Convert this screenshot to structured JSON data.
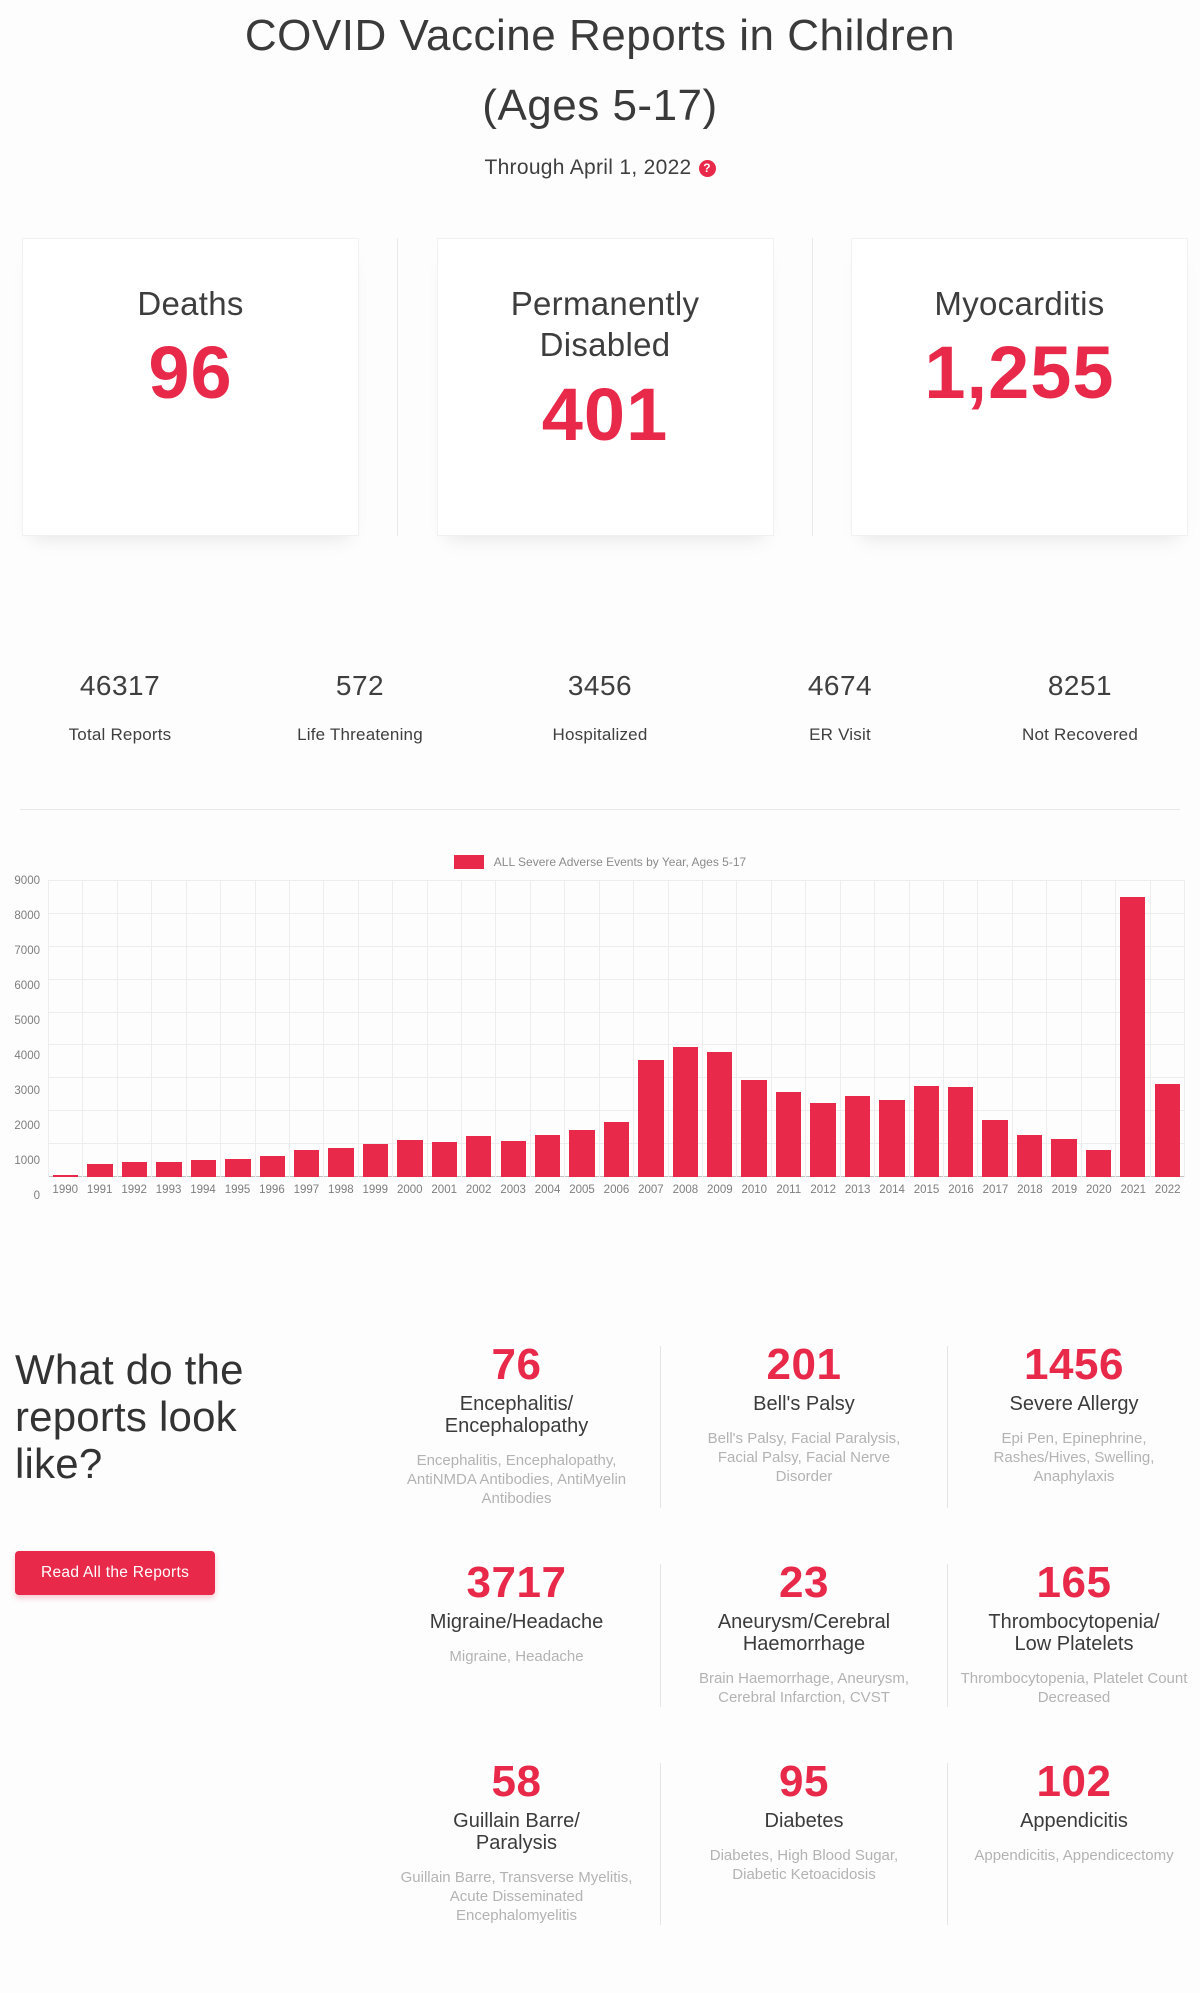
{
  "colors": {
    "accent": "#e8294a",
    "dark_text": "#3b3b3b",
    "muted_text": "#b3b3b3",
    "axis_text": "#7e7e7e",
    "grid_line": "#ededed"
  },
  "page": {
    "title_line1": "COVID Vaccine Reports in Children",
    "title_line2": "(Ages 5-17)",
    "subtitle": "Through April 1, 2022",
    "help_badge": "?"
  },
  "summary_cards": [
    {
      "label": "Deaths",
      "value": "96"
    },
    {
      "label": "Permanently Disabled",
      "value": "401"
    },
    {
      "label": "Myocarditis",
      "value": "1,255"
    }
  ],
  "stats": [
    {
      "value": "46317",
      "label": "Total Reports"
    },
    {
      "value": "572",
      "label": "Life Threatening"
    },
    {
      "value": "3456",
      "label": "Hospitalized"
    },
    {
      "value": "4674",
      "label": "ER Visit"
    },
    {
      "value": "8251",
      "label": "Not Recovered"
    }
  ],
  "chart_data": {
    "type": "bar",
    "title": "ALL Severe Adverse Events by Year, Ages 5-17",
    "legend_position": "top",
    "grid": true,
    "xlabel": "",
    "ylabel": "",
    "ylim": [
      0,
      9000
    ],
    "ytick_step": 1000,
    "categories": [
      "1990",
      "1991",
      "1992",
      "1993",
      "1994",
      "1995",
      "1996",
      "1997",
      "1998",
      "1999",
      "2000",
      "2001",
      "2002",
      "2003",
      "2004",
      "2005",
      "2006",
      "2007",
      "2008",
      "2009",
      "2010",
      "2011",
      "2012",
      "2013",
      "2014",
      "2015",
      "2016",
      "2017",
      "2018",
      "2019",
      "2020",
      "2021",
      "2022"
    ],
    "values": [
      50,
      400,
      450,
      450,
      510,
      560,
      650,
      820,
      870,
      1000,
      1120,
      1060,
      1250,
      1080,
      1270,
      1440,
      1660,
      3570,
      3950,
      3800,
      2950,
      2570,
      2260,
      2450,
      2330,
      2760,
      2730,
      1720,
      1270,
      1170,
      820,
      8520,
      2830
    ]
  },
  "reports_section": {
    "heading": "What do the reports look like?",
    "button_label": "Read All the Reports",
    "cells": [
      {
        "value": "76",
        "title": "Encephalitis/\nEncephalopathy",
        "subtitle": "Encephalitis, Encephalopathy, AntiNMDA Antibodies, AntiMyelin Antibodies"
      },
      {
        "value": "201",
        "title": "Bell's Palsy",
        "subtitle": "Bell's Palsy, Facial Paralysis, Facial Palsy, Facial Nerve Disorder"
      },
      {
        "value": "1456",
        "title": "Severe Allergy",
        "subtitle": "Epi Pen, Epinephrine, Rashes/Hives, Swelling, Anaphylaxis"
      },
      {
        "value": "3717",
        "title": "Migraine/Headache",
        "subtitle": "Migraine, Headache"
      },
      {
        "value": "23",
        "title": "Aneurysm/Cerebral\nHaemorrhage",
        "subtitle": "Brain Haemorrhage, Aneurysm, Cerebral Infarction, CVST"
      },
      {
        "value": "165",
        "title": "Thrombocytopenia/\nLow Platelets",
        "subtitle": "Thrombocytopenia, Platelet Count Decreased"
      },
      {
        "value": "58",
        "title": "Guillain Barre/\nParalysis",
        "subtitle": "Guillain Barre, Transverse Myelitis, Acute Disseminated Encephalomyelitis"
      },
      {
        "value": "95",
        "title": "Diabetes",
        "subtitle": "Diabetes, High Blood Sugar, Diabetic Ketoacidosis"
      },
      {
        "value": "102",
        "title": "Appendicitis",
        "subtitle": "Appendicitis, Appendicectomy"
      }
    ]
  }
}
